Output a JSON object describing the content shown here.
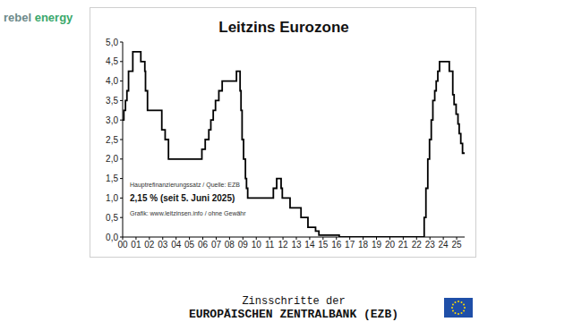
{
  "logo": "rebel energy",
  "caption": [
    "Zinsschritte der",
    "EUROPÄISCHEN ZENTRALBANK (EZB)"
  ],
  "chart_data": {
    "type": "line",
    "title": "Leitzins Eurozone",
    "annotations": [
      "Hauptrefinanzierungssatz / Quelle: EZB",
      "2,15 % (seit 5. Juni 2025)",
      "Grafik: www.leitzinsen.info / ohne Gewähr"
    ],
    "x": [
      2000.0,
      2000.09,
      2000.21,
      2000.32,
      2000.44,
      2000.76,
      2001.36,
      2001.66,
      2001.71,
      2001.86,
      2002.93,
      2003.18,
      2003.43,
      2005.93,
      2006.18,
      2006.45,
      2006.6,
      2006.78,
      2006.95,
      2007.2,
      2007.45,
      2008.52,
      2008.79,
      2008.86,
      2008.94,
      2009.05,
      2009.19,
      2009.27,
      2009.36,
      2011.28,
      2011.53,
      2011.86,
      2011.95,
      2012.53,
      2013.35,
      2013.87,
      2014.44,
      2014.69,
      2016.21,
      2022.57,
      2022.7,
      2022.84,
      2022.97,
      2023.1,
      2023.22,
      2023.36,
      2023.47,
      2023.59,
      2023.72,
      2024.45,
      2024.71,
      2024.81,
      2024.96,
      2025.1,
      2025.19,
      2025.31,
      2025.44,
      2025.6
    ],
    "values": [
      3.0,
      3.25,
      3.5,
      3.75,
      4.25,
      4.75,
      4.5,
      4.25,
      3.75,
      3.25,
      2.75,
      2.5,
      2.0,
      2.25,
      2.5,
      2.75,
      3.0,
      3.25,
      3.5,
      3.75,
      4.0,
      4.25,
      3.75,
      3.25,
      2.5,
      2.0,
      1.5,
      1.25,
      1.0,
      1.25,
      1.5,
      1.25,
      1.0,
      0.75,
      0.5,
      0.25,
      0.15,
      0.05,
      0.0,
      0.5,
      1.25,
      2.0,
      2.5,
      3.0,
      3.5,
      3.75,
      4.0,
      4.25,
      4.5,
      4.25,
      3.65,
      3.4,
      3.15,
      2.9,
      2.65,
      2.4,
      2.15,
      2.15
    ],
    "color": "#000000",
    "line_style": "step",
    "grid": false,
    "xlim": [
      2000,
      2025.6
    ],
    "xticks": [
      {
        "value": 2000,
        "label": "00"
      },
      {
        "value": 2001,
        "label": "01"
      },
      {
        "value": 2002,
        "label": "02"
      },
      {
        "value": 2003,
        "label": "03"
      },
      {
        "value": 2004,
        "label": "04"
      },
      {
        "value": 2005,
        "label": "05"
      },
      {
        "value": 2006,
        "label": "06"
      },
      {
        "value": 2007,
        "label": "07"
      },
      {
        "value": 2008,
        "label": "08"
      },
      {
        "value": 2009,
        "label": "09"
      },
      {
        "value": 2010,
        "label": "10"
      },
      {
        "value": 2011,
        "label": "11"
      },
      {
        "value": 2012,
        "label": "12"
      },
      {
        "value": 2013,
        "label": "13"
      },
      {
        "value": 2014,
        "label": "14"
      },
      {
        "value": 2015,
        "label": "15"
      },
      {
        "value": 2016,
        "label": "16"
      },
      {
        "value": 2017,
        "label": "17"
      },
      {
        "value": 2018,
        "label": "18"
      },
      {
        "value": 2019,
        "label": "19"
      },
      {
        "value": 2020,
        "label": "20"
      },
      {
        "value": 2021,
        "label": "21"
      },
      {
        "value": 2022,
        "label": "22"
      },
      {
        "value": 2023,
        "label": "23"
      },
      {
        "value": 2024,
        "label": "24"
      },
      {
        "value": 2025,
        "label": "25"
      }
    ],
    "ylim": [
      0,
      5
    ],
    "yticks": [
      {
        "value": 0,
        "label": "0,0"
      },
      {
        "value": 0.5,
        "label": "0,5"
      },
      {
        "value": 1,
        "label": "1,0"
      },
      {
        "value": 1.5,
        "label": "1,5"
      },
      {
        "value": 2,
        "label": "2,0"
      },
      {
        "value": 2.5,
        "label": "2,5"
      },
      {
        "value": 3,
        "label": "3,0"
      },
      {
        "value": 3.5,
        "label": "3,5"
      },
      {
        "value": 4,
        "label": "4,0"
      },
      {
        "value": 4.5,
        "label": "4,5"
      },
      {
        "value": 5,
        "label": "5,0"
      }
    ]
  }
}
